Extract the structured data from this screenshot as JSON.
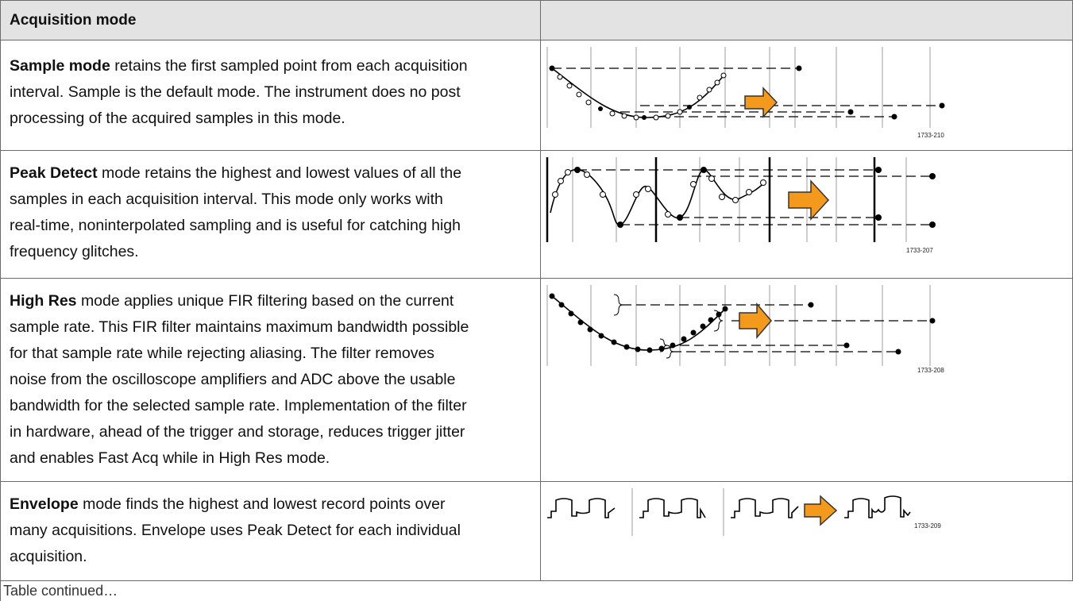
{
  "header": {
    "title": "Acquisition mode"
  },
  "rows": [
    {
      "term": "Sample mode",
      "lines": [
        "retains the first sampled point from each acquisition",
        "interval. Sample is the default mode. The instrument does no post",
        "processing of the acquired samples in this mode."
      ],
      "figure_label": "1733-210"
    },
    {
      "term": "Peak Detect",
      "lines": [
        "mode retains the highest and lowest values of all the",
        "samples in each acquisition interval. This mode only works with",
        "real-time, noninterpolated sampling and is useful for catching high",
        "frequency glitches."
      ],
      "figure_label": "1733-207"
    },
    {
      "term": "High Res",
      "lines": [
        "mode applies unique FIR filtering based on the current",
        "sample rate. This FIR filter maintains maximum bandwidth possible",
        "for that sample rate while rejecting aliasing. The filter removes",
        "noise from the oscilloscope amplifiers and ADC above the usable",
        "bandwidth for the selected sample rate. Implementation of the filter",
        "in hardware, ahead of the trigger and storage, reduces trigger jitter",
        "and enables Fast Acq while in High Res mode."
      ],
      "figure_label": "1733-208"
    },
    {
      "term": "Envelope",
      "lines": [
        "mode finds the highest and lowest record points over",
        "many acquisitions. Envelope uses Peak Detect for each individual",
        "acquisition."
      ],
      "figure_label": "1733-209"
    }
  ],
  "footer": "Table continued…"
}
